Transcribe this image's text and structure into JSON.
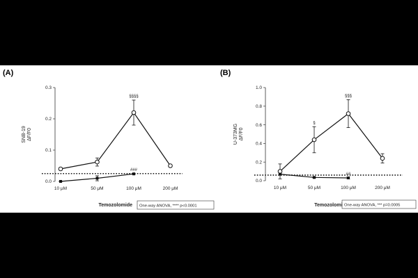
{
  "chart_data": [
    {
      "panel_label": "(A)",
      "type": "line",
      "categories": [
        "10 μM",
        "50 μM",
        "100 μM",
        "200 μM"
      ],
      "ylabel_lines": [
        "SNB-19",
        "ΔF/F0"
      ],
      "xlabel": "Temozolomide",
      "ylim": [
        0,
        0.3
      ],
      "yticks": [
        "0.0",
        "0.1",
        "0.2",
        "0.3"
      ],
      "baseline": 0.025,
      "series": [
        {
          "marker": "open-circle",
          "values": [
            0.04,
            0.062,
            0.22,
            0.05
          ],
          "errors": [
            0.002,
            0.013,
            0.04,
            0.002
          ]
        },
        {
          "marker": "filled",
          "values": [
            0.0,
            0.01,
            0.024,
            null
          ],
          "errors": [
            0.001,
            0.008,
            0.002,
            null
          ]
        }
      ],
      "annotations": [
        {
          "category": "100 μM",
          "text": "§§§§",
          "anchor": "top"
        },
        {
          "category": "100 μM",
          "text": "###",
          "anchor": "low"
        }
      ],
      "stats_box": "One-way ANOVA, **** p<0.0001"
    },
    {
      "panel_label": "(B)",
      "type": "line",
      "categories": [
        "10 μM",
        "50 μM",
        "100 μM",
        "200 μM"
      ],
      "ylabel_lines": [
        "U-373MG",
        "ΔF/F0"
      ],
      "xlabel": "Temozolomide",
      "ylim": [
        0,
        1.0
      ],
      "yticks": [
        "0.0",
        "0.2",
        "0.4",
        "0.6",
        "0.8",
        "1.0"
      ],
      "baseline": 0.06,
      "series": [
        {
          "marker": "open-circle",
          "values": [
            0.1,
            0.44,
            0.72,
            0.24
          ],
          "errors": [
            0.08,
            0.14,
            0.15,
            0.05
          ]
        },
        {
          "marker": "filled",
          "values": [
            0.07,
            0.035,
            0.03,
            null
          ],
          "errors": [
            0.01,
            0.005,
            0.01,
            null
          ]
        }
      ],
      "annotations": [
        {
          "category": "50 μM",
          "text": "§",
          "anchor": "top"
        },
        {
          "category": "100 μM",
          "text": "§§§",
          "anchor": "top"
        },
        {
          "category": "100 μM",
          "text": "##",
          "anchor": "low"
        }
      ],
      "stats_box": "One-way ANOVA, *** p=0.0005"
    }
  ]
}
